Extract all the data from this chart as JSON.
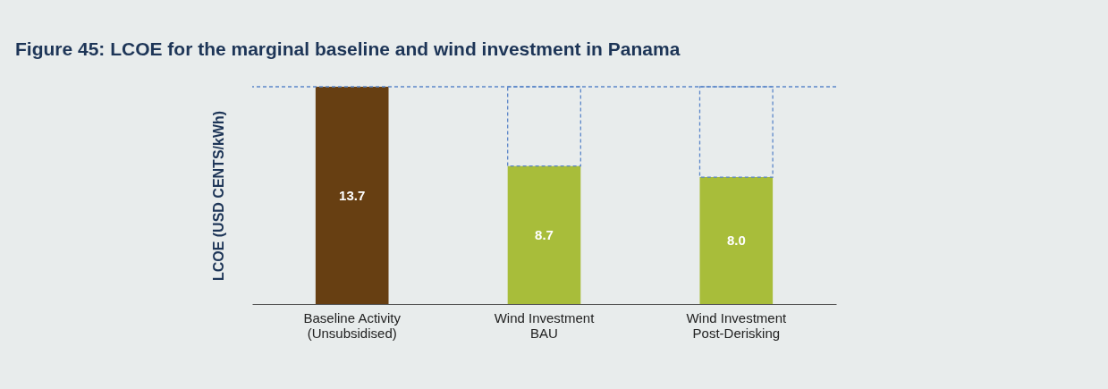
{
  "chart_data": {
    "type": "bar",
    "title": "Figure 45: LCOE for the marginal baseline and wind investment in Panama",
    "ylabel": "LCOE  (USD CENTS/kWh)",
    "categories": [
      "Baseline Activity\n(Unsubsidised)",
      "Wind Investment\nBAU",
      "Wind Investment\nPost-Derisking"
    ],
    "stacked": true,
    "series": [
      {
        "colors": [
          "#673f12",
          "#a8bd3a",
          "#a8bd3a"
        ],
        "values": [
          13.7,
          8.7,
          8.0
        ],
        "value_labels": [
          "13.7",
          "8.7",
          "8.0"
        ]
      },
      {
        "color": "#5b86c9",
        "line_style": "dashed",
        "values": [
          null,
          5.0,
          5.7
        ]
      }
    ],
    "ref_lines": [
      {
        "axis": "y",
        "value": 13.7,
        "color": "#5b86c9",
        "line_style": "dashed"
      }
    ],
    "grid": false
  }
}
